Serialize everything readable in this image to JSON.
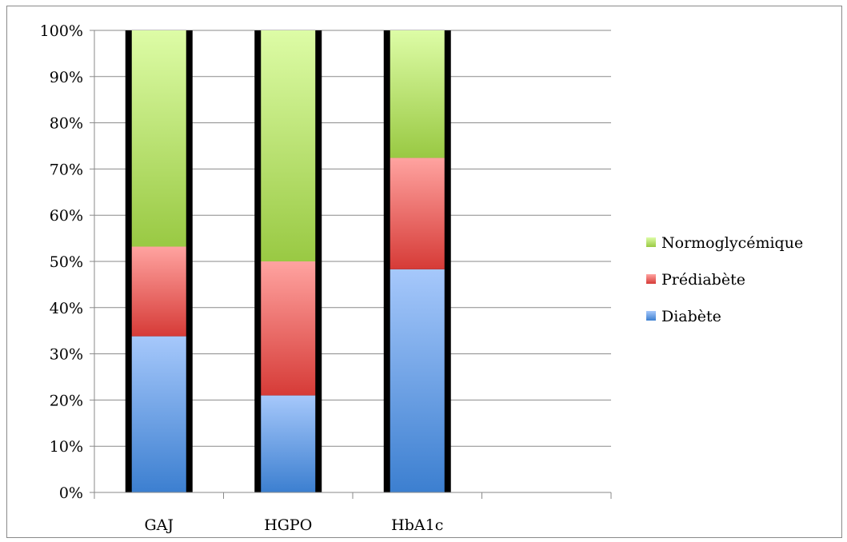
{
  "chart_data": {
    "type": "bar",
    "stacked": true,
    "percent_stacked": true,
    "categories": [
      "GAJ",
      "HGPO",
      "HbA1c"
    ],
    "series": [
      {
        "name": "Diabète",
        "values": [
          33.8,
          21.0,
          48.3
        ],
        "color": "#5b8fd6"
      },
      {
        "name": "Prédiabète",
        "values": [
          19.4,
          29.0,
          24.1
        ],
        "color": "#e05a57"
      },
      {
        "name": "Normoglycémique",
        "values": [
          46.8,
          50.0,
          27.6
        ],
        "color": "#b9df6e"
      }
    ],
    "y_ticks": [
      "0%",
      "10%",
      "20%",
      "30%",
      "40%",
      "50%",
      "60%",
      "70%",
      "80%",
      "90%",
      "100%"
    ],
    "ylim": [
      0,
      100
    ],
    "grid": true,
    "legend_position": "right",
    "legend_order": [
      "Normoglycémique",
      "Prédiabète",
      "Diabète"
    ],
    "title": "",
    "xlabel": "",
    "ylabel": ""
  }
}
